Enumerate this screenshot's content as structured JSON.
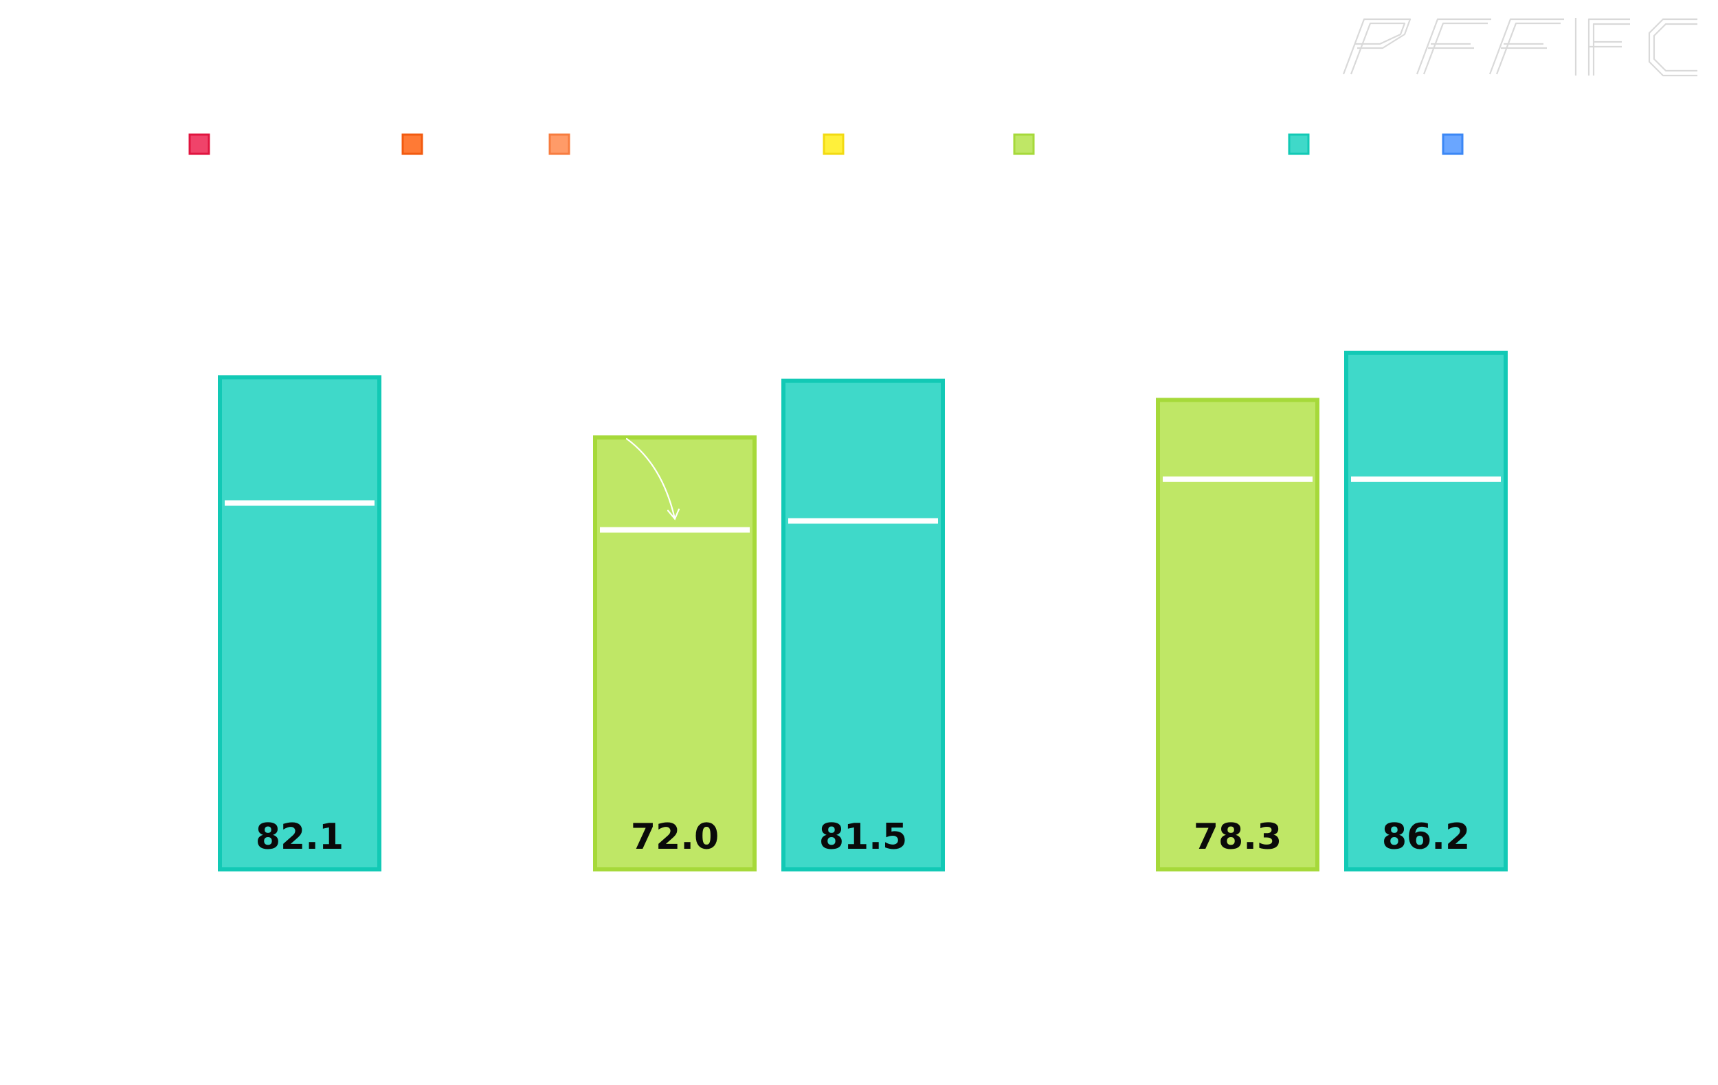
{
  "logo": {
    "text": "PFF FC",
    "name": "pff-fc-logo"
  },
  "legend": {
    "swatches": [
      {
        "key": "grade-1",
        "color": "#f0436a",
        "border": "#e0143f"
      },
      {
        "key": "grade-2",
        "color": "#ff7a35",
        "border": "#f25a0f"
      },
      {
        "key": "grade-3",
        "color": "#ff9b68",
        "border": "#f77c3f"
      },
      {
        "key": "grade-4",
        "color": "#fff03b",
        "border": "#f2da12"
      },
      {
        "key": "grade-5",
        "color": "#bfe766",
        "border": "#a6d93a"
      },
      {
        "key": "grade-6",
        "color": "#3fd9c9",
        "border": "#12c9b5"
      },
      {
        "key": "grade-7",
        "color": "#6aa6ff",
        "border": "#3b87f5"
      }
    ]
  },
  "chart_data": {
    "type": "bar",
    "title": "",
    "xlabel": "",
    "ylabel": "",
    "ylim": [
      0,
      100
    ],
    "grid": false,
    "legend": "top",
    "colors": {
      "green": "#bfe766",
      "green_border": "#a6d93a",
      "teal": "#3fd9c9",
      "teal_border": "#12c9b5",
      "marker": "#ffffff"
    },
    "bars": [
      {
        "group": 0,
        "value": 82.1,
        "label": "82.1",
        "marker": 61.0,
        "color_key": "teal"
      },
      {
        "group": 1,
        "value": 72.0,
        "label": "72.0",
        "marker": 56.5,
        "color_key": "green",
        "annotation_arrow": true
      },
      {
        "group": 1,
        "value": 81.5,
        "label": "81.5",
        "marker": 58.0,
        "color_key": "teal"
      },
      {
        "group": 2,
        "value": 78.3,
        "label": "78.3",
        "marker": 65.0,
        "color_key": "green"
      },
      {
        "group": 2,
        "value": 86.2,
        "label": "86.2",
        "marker": 65.0,
        "color_key": "teal"
      }
    ]
  }
}
